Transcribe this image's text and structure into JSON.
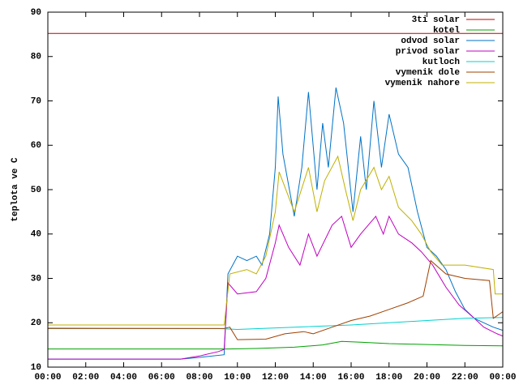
{
  "chart_data": {
    "type": "line",
    "y_label": "teplota ve C",
    "xlim": [
      0,
      24
    ],
    "xticks": [
      {
        "value": 0,
        "label": "00:00"
      },
      {
        "value": 2,
        "label": "02:00"
      },
      {
        "value": 4,
        "label": "04:00"
      },
      {
        "value": 6,
        "label": "06:00"
      },
      {
        "value": 8,
        "label": "08:00"
      },
      {
        "value": 10,
        "label": "10:00"
      },
      {
        "value": 12,
        "label": "12:00"
      },
      {
        "value": 14,
        "label": "14:00"
      },
      {
        "value": 16,
        "label": "16:00"
      },
      {
        "value": 18,
        "label": "18:00"
      },
      {
        "value": 20,
        "label": "20:00"
      },
      {
        "value": 22,
        "label": "22:00"
      },
      {
        "value": 24,
        "label": "00:00"
      }
    ],
    "ylim": [
      10,
      90
    ],
    "yticks": [
      10,
      20,
      30,
      40,
      50,
      60,
      70,
      80,
      90
    ],
    "legend": "top-right",
    "series": [
      {
        "name": "3ti solar",
        "color": "#c00000",
        "x": [
          0,
          24
        ],
        "values": [
          85.2,
          85.2
        ]
      },
      {
        "name": "kotel",
        "color": "#00a000",
        "x": [
          0,
          9.5,
          11,
          13,
          14.5,
          15.5,
          16.5,
          18,
          20,
          22,
          24
        ],
        "values": [
          14.1,
          14.1,
          14.2,
          14.5,
          15,
          15.8,
          15.6,
          15.3,
          15.1,
          14.9,
          14.8
        ]
      },
      {
        "name": "odvod solar",
        "color": "#0072c6",
        "x": [
          0,
          7,
          8,
          9.3,
          9.5,
          10,
          10.5,
          11,
          11.3,
          11.7,
          12,
          12.15,
          12.4,
          13,
          13.4,
          13.75,
          14.2,
          14.5,
          14.8,
          15.2,
          15.6,
          16.1,
          16.5,
          16.8,
          17.2,
          17.6,
          18,
          18.5,
          19,
          19.5,
          20,
          20.5,
          21,
          21.5,
          22,
          22.5,
          23,
          23.5,
          24
        ],
        "values": [
          11.8,
          11.8,
          12.2,
          12.8,
          31,
          35,
          34,
          35,
          33,
          40,
          55,
          71,
          58,
          44,
          55,
          72,
          50,
          65,
          55,
          73,
          65,
          45,
          62,
          50,
          70,
          55,
          67,
          58,
          55,
          45,
          37,
          35,
          32,
          27,
          23,
          21,
          20,
          19,
          18.3
        ]
      },
      {
        "name": "privod solar",
        "color": "#c000c0",
        "x": [
          0,
          7,
          8,
          9,
          9.3,
          9.5,
          10,
          11,
          11.5,
          12,
          12.2,
          12.7,
          13.3,
          13.75,
          14.2,
          15,
          15.5,
          16,
          16.5,
          17.3,
          17.7,
          18,
          18.5,
          19.2,
          19.7,
          20.3,
          21,
          21.7,
          22.5,
          23,
          23.7,
          24
        ],
        "values": [
          11.8,
          11.8,
          12.5,
          13.5,
          14,
          29,
          26.5,
          27,
          30,
          38,
          42,
          37,
          33,
          40,
          35,
          42,
          44,
          37,
          40,
          44,
          40,
          44,
          40,
          38,
          36,
          33,
          28,
          24,
          21,
          19,
          17.5,
          17
        ]
      },
      {
        "name": "kutloch",
        "color": "#00d0d0",
        "x": [
          0,
          9,
          10,
          13,
          16,
          18,
          20,
          22,
          24
        ],
        "values": [
          18.8,
          18.7,
          18.5,
          19,
          19.5,
          20,
          20.5,
          21,
          21.2
        ]
      },
      {
        "name": "vymenik dole",
        "color": "#a04000",
        "x": [
          0,
          9.3,
          9.6,
          10,
          11.5,
          12.5,
          13.5,
          14,
          15,
          16,
          17,
          18,
          19,
          19.8,
          20.2,
          21,
          22,
          23.3,
          23.5,
          24
        ],
        "values": [
          18.7,
          18.7,
          19,
          16.2,
          16.3,
          17.5,
          18,
          17.5,
          19,
          20.5,
          21.5,
          23,
          24.5,
          26,
          34,
          31,
          30,
          29.5,
          21,
          22.5
        ]
      },
      {
        "name": "vymenik nahore",
        "color": "#c0b000",
        "x": [
          0,
          9.3,
          9.6,
          10.5,
          11,
          11.5,
          12,
          12.2,
          13,
          13.75,
          14.2,
          14.6,
          15.3,
          15.7,
          16.1,
          16.5,
          17.2,
          17.6,
          18,
          18.5,
          19.2,
          19.7,
          20.2,
          20.8,
          22,
          23.5,
          23.6,
          24
        ],
        "values": [
          19.5,
          19.5,
          31,
          32,
          31,
          35,
          45,
          54,
          45,
          55,
          45,
          52,
          57.5,
          50,
          43,
          50,
          55,
          50,
          53,
          46,
          43,
          40,
          36,
          33,
          33,
          32,
          26.5,
          26.5
        ]
      }
    ]
  }
}
